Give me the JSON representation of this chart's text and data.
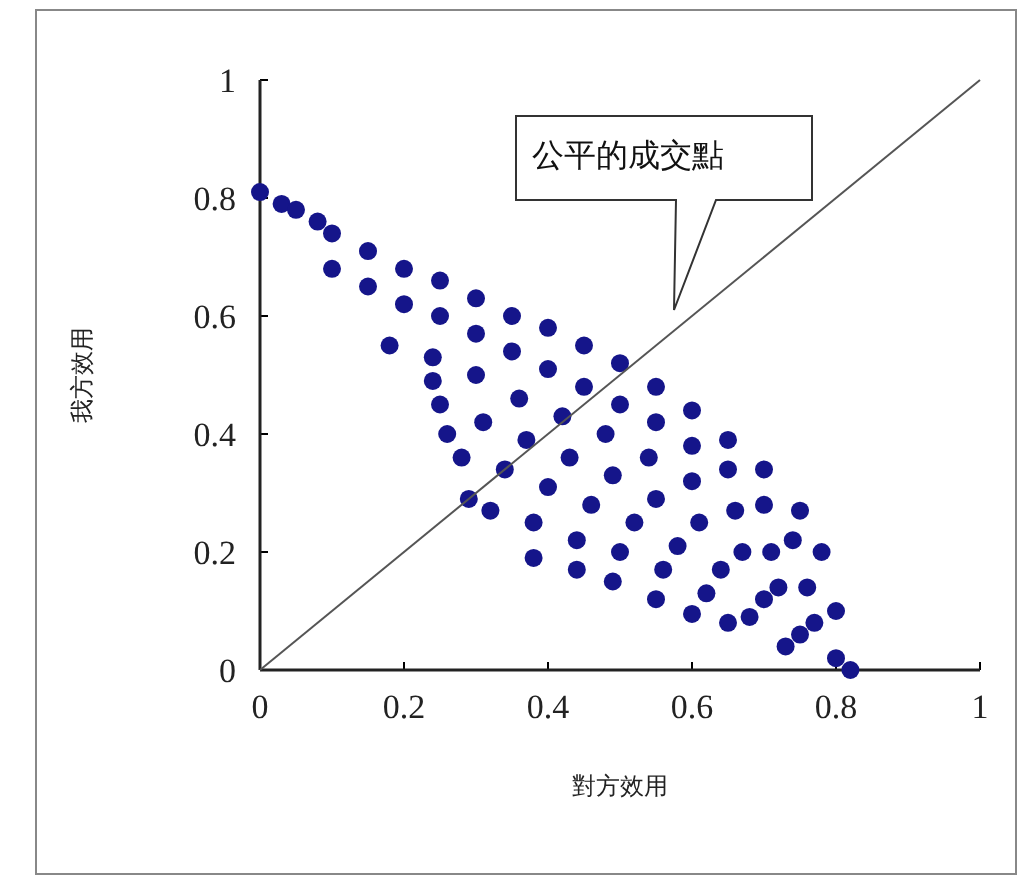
{
  "chart_data": {
    "type": "scatter",
    "xlabel": "對方效用",
    "ylabel": "我方效用",
    "xlim": [
      0,
      1
    ],
    "ylim": [
      0,
      1
    ],
    "xticks": [
      0,
      0.2,
      0.4,
      0.6,
      0.8,
      1
    ],
    "yticks": [
      0,
      0.2,
      0.4,
      0.6,
      0.8,
      1
    ],
    "grid": false,
    "annotations": [
      "公平的成交點"
    ],
    "series": [
      {
        "color": "#15158a",
        "marker": "circle",
        "x": [
          0,
          0.03,
          0.05,
          0.08,
          0.1,
          0.15,
          0.2,
          0.25,
          0.3,
          0.35,
          0.4,
          0.45,
          0.5,
          0.55,
          0.6,
          0.65,
          0.7,
          0.75,
          0.78,
          0.8,
          0.82,
          0.1,
          0.15,
          0.2,
          0.25,
          0.3,
          0.35,
          0.4,
          0.45,
          0.5,
          0.55,
          0.6,
          0.65,
          0.7,
          0.74,
          0.18,
          0.24,
          0.3,
          0.36,
          0.42,
          0.48,
          0.54,
          0.6,
          0.66,
          0.71,
          0.76,
          0.25,
          0.31,
          0.37,
          0.43,
          0.49,
          0.55,
          0.61,
          0.67,
          0.72,
          0.77,
          0.28,
          0.34,
          0.4,
          0.46,
          0.52,
          0.58,
          0.64,
          0.7,
          0.75,
          0.32,
          0.38,
          0.44,
          0.5,
          0.56,
          0.62,
          0.68,
          0.73,
          0.24,
          0.26,
          0.29,
          0.38,
          0.44,
          0.49,
          0.55,
          0.6,
          0.65,
          0.8
        ],
        "values": [
          0.81,
          0.79,
          0.78,
          0.76,
          0.74,
          0.71,
          0.68,
          0.66,
          0.63,
          0.6,
          0.58,
          0.55,
          0.52,
          0.48,
          0.44,
          0.39,
          0.34,
          0.27,
          0.2,
          0.1,
          0,
          0.68,
          0.65,
          0.62,
          0.6,
          0.57,
          0.54,
          0.51,
          0.48,
          0.45,
          0.42,
          0.38,
          0.34,
          0.28,
          0.22,
          0.55,
          0.53,
          0.5,
          0.46,
          0.43,
          0.4,
          0.36,
          0.32,
          0.27,
          0.2,
          0.14,
          0.45,
          0.42,
          0.39,
          0.36,
          0.33,
          0.29,
          0.25,
          0.2,
          0.14,
          0.08,
          0.36,
          0.34,
          0.31,
          0.28,
          0.25,
          0.21,
          0.17,
          0.12,
          0.06,
          0.27,
          0.25,
          0.22,
          0.2,
          0.17,
          0.13,
          0.09,
          0.04,
          0.49,
          0.4,
          0.29,
          0.19,
          0.17,
          0.15,
          0.12,
          0.095,
          0.08,
          0.02
        ]
      },
      {
        "type": "line",
        "color": "#555555",
        "x": [
          0,
          1
        ],
        "values": [
          0,
          1
        ]
      }
    ]
  }
}
